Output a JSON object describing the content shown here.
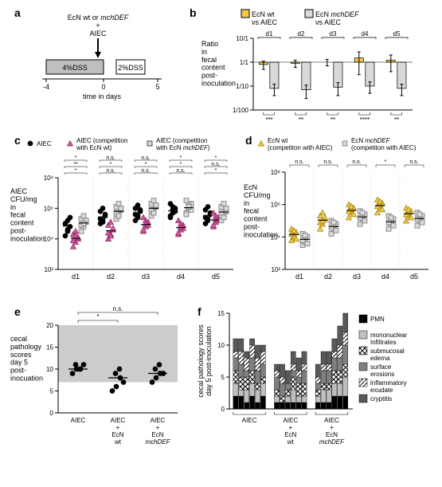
{
  "panel_a": {
    "label": "a",
    "top_text": "EcN wt or mchDEF\n+\nAIEC",
    "dss4": "4%DSS",
    "dss2": "2%DSS",
    "xaxis": "time in days",
    "xticks": [
      "-4",
      "0",
      "5"
    ],
    "bar_fill": "#bfbfbf",
    "bar2_fill": "#ffffff",
    "bar_stroke": "#000000"
  },
  "panel_b": {
    "label": "b",
    "legend": [
      {
        "label": "EcN wt\nvs AIEC",
        "fill": "#f2c94c",
        "stroke": "#000"
      },
      {
        "label": "EcN mchDEF\nvs AIEC",
        "fill": "#d9d9d9",
        "stroke": "#000"
      }
    ],
    "ylabel": "Ratio\nin\nfecal\ncontent\npost-\ninoculation",
    "yticks": [
      "10/1",
      "1/1",
      "1/10",
      "1/100"
    ],
    "days": [
      "d1",
      "d2",
      "d3",
      "d4",
      "d5"
    ],
    "wt_vals": [
      0.8,
      0.9,
      1.0,
      1.5,
      1.2
    ],
    "wt_err": [
      0.3,
      0.3,
      0.3,
      1.2,
      0.8
    ],
    "mch_vals": [
      0.08,
      0.07,
      0.09,
      0.1,
      0.08
    ],
    "mch_err": [
      0.04,
      0.04,
      0.05,
      0.05,
      0.04
    ],
    "sig": [
      "***",
      "**",
      "**",
      "****",
      "**"
    ],
    "colors": {
      "wt": "#f2c94c",
      "mch": "#d9d9d9",
      "err": "#000"
    }
  },
  "panel_c": {
    "label": "c",
    "legend": [
      {
        "label": "AIEC",
        "marker": "circle",
        "fill": "#000000"
      },
      {
        "label": "AIEC (competition\nwith EcN wt)",
        "marker": "triangle",
        "fill": "#d15a9b",
        "stroke": "#8a2060"
      },
      {
        "label": "AIEC (competition\nwith EcN mchDEF)",
        "marker": "square",
        "fill": "#d9d9d9",
        "stroke": "#000"
      }
    ],
    "ylabel": "AIEC\nCFU/mg\nin\nfecal\ncontent\npost-\ninoculation",
    "yticks": [
      "10²",
      "10⁴",
      "10⁶",
      "10⁸"
    ],
    "days": [
      "d1",
      "d2",
      "d3",
      "d4",
      "d5"
    ],
    "sig_rows": [
      [
        "*",
        "n.s.",
        "n.s.",
        "*",
        "*"
      ],
      [
        "**",
        "*",
        "*",
        "*",
        "n.s."
      ],
      [
        "*",
        "n.s.",
        "n.s.",
        "n.s.",
        "*"
      ]
    ],
    "points": {
      "AIEC": [
        [
          4.2,
          4.5,
          4.8,
          5.0,
          5.2,
          5.4,
          5.0,
          4.6
        ],
        [
          5.0,
          5.2,
          5.5,
          5.8,
          6.0,
          5.6,
          5.3,
          5.1
        ],
        [
          5.2,
          5.5,
          5.8,
          6.0,
          6.2,
          5.9,
          5.6,
          5.4
        ],
        [
          5.4,
          5.7,
          6.0,
          6.3,
          6.1,
          5.8,
          5.5,
          5.9
        ],
        [
          5.0,
          5.3,
          5.6,
          5.9,
          6.1,
          5.7,
          5.4,
          5.2
        ]
      ],
      "wt": [
        [
          3.5,
          3.8,
          4.0,
          4.3,
          4.5,
          4.1,
          3.9,
          4.2
        ],
        [
          4.0,
          4.3,
          4.6,
          4.9,
          5.1,
          4.7,
          4.4,
          4.2
        ],
        [
          4.5,
          4.8,
          5.1,
          5.4,
          5.2,
          4.9,
          4.6,
          5.0
        ],
        [
          4.3,
          4.6,
          4.9,
          5.2,
          5.0,
          4.7,
          4.4,
          4.8
        ],
        [
          4.8,
          5.1,
          5.4,
          5.7,
          5.5,
          5.2,
          4.9,
          5.3
        ]
      ],
      "mch": [
        [
          4.5,
          4.8,
          5.1,
          5.3,
          5.5,
          5.2,
          4.9,
          5.0
        ],
        [
          5.3,
          5.6,
          5.9,
          6.1,
          6.3,
          6.0,
          5.7,
          5.5
        ],
        [
          5.5,
          5.8,
          6.1,
          6.3,
          6.5,
          6.2,
          5.9,
          5.7
        ],
        [
          5.7,
          6.0,
          6.3,
          6.5,
          6.2,
          5.9,
          5.6,
          6.1
        ],
        [
          5.2,
          5.5,
          5.8,
          6.1,
          6.3,
          6.0,
          5.7,
          5.4
        ]
      ]
    },
    "colors": {
      "AIEC": "#000000",
      "wt": "#d15a9b",
      "mch": "#d9d9d9",
      "mch_stroke": "#666"
    }
  },
  "panel_d": {
    "label": "d",
    "legend": [
      {
        "label": "EcN wt\n(competiton with AIEC)",
        "marker": "triangle",
        "fill": "#f2c94c",
        "stroke": "#9a7b00"
      },
      {
        "label": "EcN mchDEF\n(competiton with AIEC)",
        "marker": "square",
        "fill": "#d9d9d9",
        "stroke": "#666"
      }
    ],
    "ylabel": "EcN\nCFU/mg\nin\nfecal\ncontent\npost-\ninoculation",
    "yticks": [
      "10²",
      "10⁴",
      "10⁶",
      "10⁸"
    ],
    "days": [
      "d1",
      "d2",
      "d3",
      "d4",
      "d5"
    ],
    "sig": [
      "n.s.",
      "n.s.",
      "n.s.",
      "*",
      "n.s."
    ],
    "points": {
      "wt": [
        [
          3.8,
          4.0,
          4.3,
          4.5,
          4.1,
          3.9,
          4.2,
          4.4
        ],
        [
          4.5,
          4.8,
          5.1,
          5.3,
          5.5,
          5.2,
          4.9,
          5.0
        ],
        [
          5.2,
          5.5,
          5.8,
          6.0,
          5.7,
          5.4,
          5.6,
          5.9
        ],
        [
          5.5,
          5.8,
          6.1,
          6.3,
          6.0,
          5.7,
          5.9,
          6.2
        ],
        [
          5.0,
          5.3,
          5.6,
          5.8,
          5.5,
          5.2,
          5.4,
          5.7
        ]
      ],
      "mch": [
        [
          3.5,
          3.7,
          4.0,
          4.2,
          3.9,
          3.6,
          3.8,
          4.1
        ],
        [
          4.2,
          4.5,
          4.8,
          5.0,
          4.7,
          4.4,
          4.6,
          4.9
        ],
        [
          4.8,
          5.1,
          5.4,
          5.6,
          5.3,
          5.0,
          5.2,
          5.5
        ],
        [
          4.5,
          4.8,
          5.1,
          5.3,
          5.0,
          4.7,
          4.9,
          5.2
        ],
        [
          4.7,
          5.0,
          5.3,
          5.5,
          5.2,
          4.9,
          5.1,
          5.4
        ]
      ]
    },
    "colors": {
      "wt": "#f2c94c",
      "wt_stroke": "#9a7b00",
      "mch": "#d9d9d9",
      "mch_stroke": "#666"
    }
  },
  "panel_e": {
    "label": "e",
    "ylabel": "cecal\npathology\nscores\nday 5\npost-\ninocuation",
    "yticks": [
      "0",
      "5",
      "10",
      "15",
      "20"
    ],
    "groups": [
      "AIEC",
      "AIEC\n+\nEcN\nwt",
      "AIEC\n+\nEcN\nmchDEF"
    ],
    "band": {
      "lo": 7,
      "hi": 20,
      "fill": "#cccccc"
    },
    "points": [
      [
        9,
        10,
        10,
        11,
        10,
        11
      ],
      [
        5,
        6,
        8,
        9,
        10,
        7
      ],
      [
        7,
        8,
        9,
        10,
        11,
        9
      ]
    ],
    "medians": [
      10,
      8,
      9
    ],
    "sig": [
      {
        "from": 0,
        "to": 1,
        "label": "*"
      },
      {
        "from": 0,
        "to": 2,
        "label": "n.s."
      }
    ],
    "marker_fill": "#000000"
  },
  "panel_f": {
    "label": "f",
    "ylabel": "cecal pathology scores\nday 5 post-inoculation",
    "yticks": [
      "0",
      "5",
      "10",
      "15"
    ],
    "groups": [
      "AIEC",
      "AIEC\n+\nEcN\nwt",
      "AIEC\n+\nEcN\nmchDEF"
    ],
    "categories": [
      {
        "name": "PMN",
        "fill": "#000000"
      },
      {
        "name": "mononuclear\nInfiltrates",
        "fill": "#bfbfbf"
      },
      {
        "name": "submucosal\nedema",
        "pattern": "hatch",
        "fill": "#ffffff"
      },
      {
        "name": "surface\nerosions",
        "fill": "#808080"
      },
      {
        "name": "inflammatory\nexudate",
        "pattern": "diag",
        "fill": "#ffffff"
      },
      {
        "name": "cryptitis",
        "fill": "#595959"
      }
    ],
    "bars": [
      [
        [
          2,
          2,
          1,
          2,
          1,
          2
        ],
        [
          2,
          1,
          2,
          2,
          2,
          2
        ],
        [
          2,
          2,
          2,
          2,
          1,
          1
        ],
        [
          2,
          2,
          1,
          2,
          2,
          2
        ],
        [
          1,
          2,
          2,
          2,
          2,
          2
        ],
        [
          2,
          2,
          1,
          1,
          2,
          1
        ]
      ],
      [
        [
          1,
          1,
          1,
          1,
          1,
          1
        ],
        [
          1,
          0,
          1,
          2,
          1,
          1
        ],
        [
          1,
          1,
          1,
          2,
          2,
          2
        ],
        [
          2,
          2,
          1,
          1,
          1,
          2
        ],
        [
          1,
          1,
          0,
          1,
          1,
          1
        ],
        [
          1,
          2,
          2,
          2,
          2,
          2
        ]
      ],
      [
        [
          1,
          1,
          1,
          2,
          2,
          2
        ],
        [
          1,
          2,
          2,
          2,
          2,
          3
        ],
        [
          1,
          1,
          1,
          2,
          2,
          2
        ],
        [
          1,
          2,
          2,
          2,
          2,
          3
        ],
        [
          1,
          1,
          1,
          1,
          2,
          2
        ],
        [
          2,
          2,
          2,
          2,
          3,
          3
        ]
      ]
    ]
  }
}
